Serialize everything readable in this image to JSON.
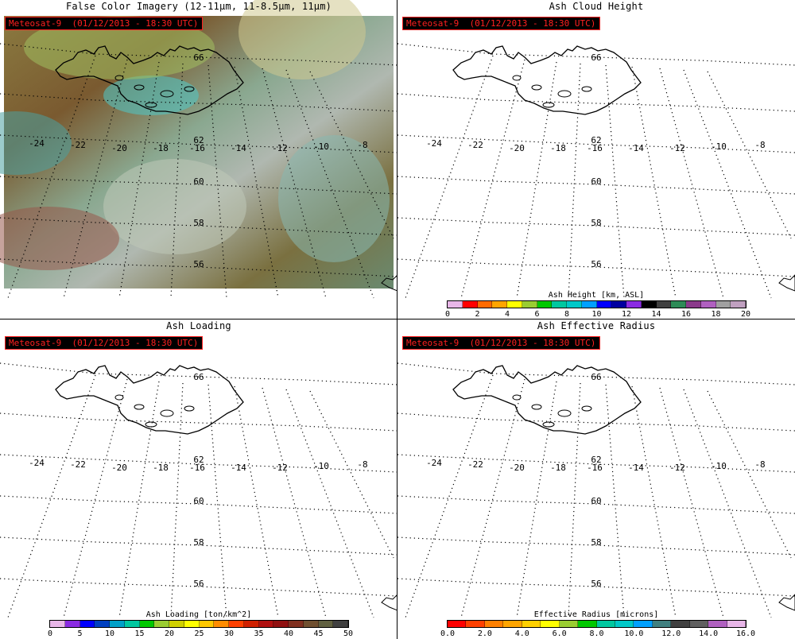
{
  "timestamp": "Meteosat-9  (01/12/2013 - 18:30 UTC)",
  "lon_labels": [
    "-24",
    "-22",
    "-20",
    "-18",
    "-16",
    "-14",
    "-12",
    "-10",
    "-8"
  ],
  "lat_labels": [
    "66",
    "62",
    "60",
    "58",
    "56"
  ],
  "panels": [
    {
      "title": "False Color Imagery (12-11μm, 11-8.5μm, 11μm)",
      "colorbar": null
    },
    {
      "title": "Ash Cloud Height",
      "colorbar": {
        "label": "Ash Height [km, ASL]",
        "ticks": [
          "0",
          "2",
          "4",
          "6",
          "8",
          "10",
          "12",
          "14",
          "16",
          "18",
          "20"
        ],
        "colors": [
          "#e8b6e8",
          "#ff0000",
          "#ff6a00",
          "#ffa500",
          "#ffff00",
          "#9acd32",
          "#00c800",
          "#00c8a0",
          "#00c8c8",
          "#00a0ff",
          "#0000ff",
          "#0000a0",
          "#8a2be2",
          "#000000",
          "#404040",
          "#2e8b57",
          "#8b3a8b",
          "#b060c0",
          "#a0a0a0",
          "#c0a0c0"
        ]
      }
    },
    {
      "title": "Ash Loading",
      "colorbar": {
        "label": "Ash Loading [ton/km^2]",
        "ticks": [
          "0",
          "5",
          "10",
          "15",
          "20",
          "25",
          "30",
          "35",
          "40",
          "45",
          "50"
        ],
        "colors": [
          "#e8b6e8",
          "#8a2be2",
          "#0000ff",
          "#0040c0",
          "#00a0c8",
          "#00c8a0",
          "#00c800",
          "#9acd32",
          "#d0d000",
          "#ffff00",
          "#ffc800",
          "#ff8c00",
          "#ff4000",
          "#d02000",
          "#b01010",
          "#901010",
          "#803020",
          "#705030",
          "#606040",
          "#404040"
        ]
      }
    },
    {
      "title": "Ash Effective Radius",
      "colorbar": {
        "label": "Effective Radius [microns]",
        "ticks": [
          "0.0",
          "2.0",
          "4.0",
          "6.0",
          "8.0",
          "10.0",
          "12.0",
          "14.0",
          "16.0"
        ],
        "colors": [
          "#ff0000",
          "#ff4000",
          "#ff8000",
          "#ffa500",
          "#ffd000",
          "#ffff00",
          "#9acd32",
          "#00c800",
          "#00c8a0",
          "#00c8c8",
          "#00a0ff",
          "#408080",
          "#404040",
          "#606060",
          "#b060c0",
          "#e8b6e8"
        ]
      }
    }
  ]
}
